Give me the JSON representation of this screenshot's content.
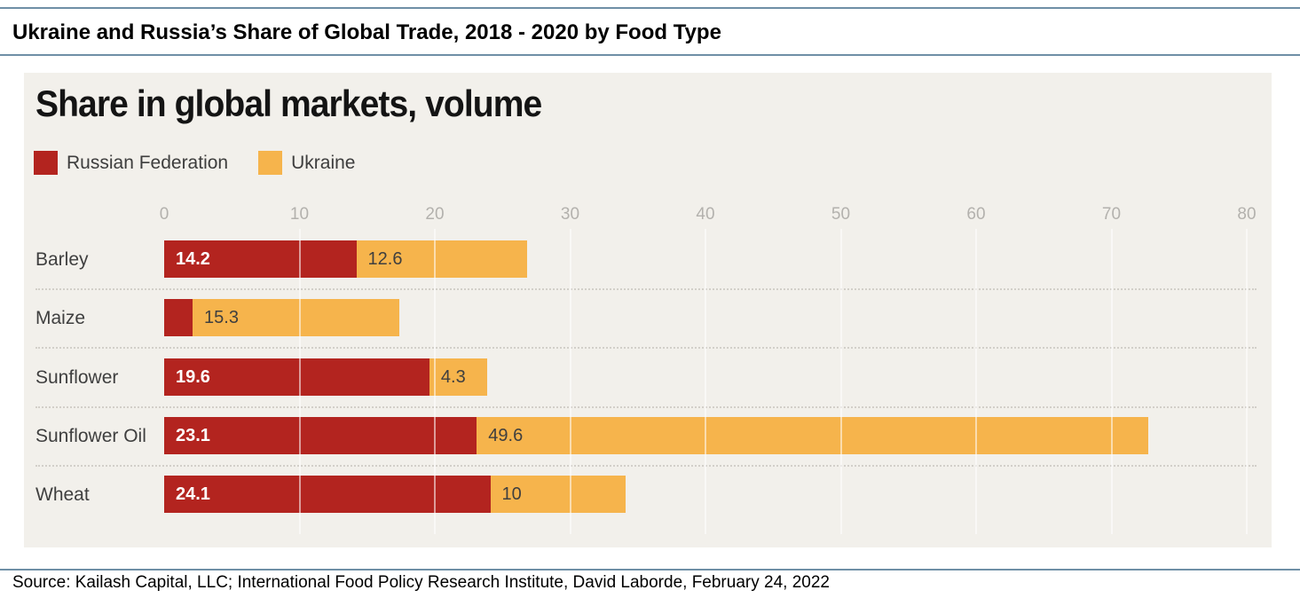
{
  "header": {
    "title": "Ukraine and Russia’s Share of Global Trade, 2018 - 2020 by Food Type"
  },
  "chart": {
    "title": "Share in global markets, volume",
    "legend": [
      {
        "label": "Russian Federation",
        "color": "#b3241f"
      },
      {
        "label": "Ukraine",
        "color": "#f6b44c"
      }
    ]
  },
  "chart_data": {
    "type": "bar",
    "orientation": "horizontal",
    "stacked": true,
    "title": "Share in global markets, volume",
    "categories": [
      "Barley",
      "Maize",
      "Sunflower",
      "Sunflower Oil",
      "Wheat"
    ],
    "series": [
      {
        "name": "Russian Federation",
        "color": "#b3241f",
        "values": [
          14.2,
          2.1,
          19.6,
          23.1,
          24.1
        ],
        "labels": [
          "14.2",
          "",
          "19.6",
          "23.1",
          "24.1"
        ]
      },
      {
        "name": "Ukraine",
        "color": "#f6b44c",
        "values": [
          12.6,
          15.3,
          4.3,
          49.6,
          10
        ],
        "labels": [
          "12.6",
          "15.3",
          "4.3",
          "49.6",
          "10"
        ]
      }
    ],
    "xlim": [
      0,
      80
    ],
    "xticks": [
      0,
      10,
      20,
      30,
      40,
      50,
      60,
      70,
      80
    ],
    "grid": true,
    "legend_position": "top-left",
    "panel_background": "#f2f0eb"
  },
  "footer": {
    "source": "Source: Kailash Capital, LLC; International Food Policy Research Institute, David Laborde, February 24, 2022"
  }
}
